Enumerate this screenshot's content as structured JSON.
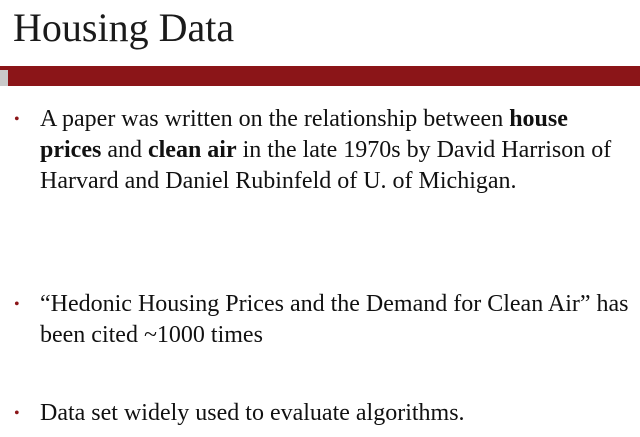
{
  "slide": {
    "title": "Housing Data",
    "colors": {
      "title_rule": "#8b1518",
      "title_rule_accent": "#c9c9c9",
      "bullet_marker": "#8b1518"
    },
    "bullet_marker": "•",
    "bullets": [
      {
        "part1": "A paper was written on the relationship between ",
        "bold1": "house prices",
        "part2": " and ",
        "bold2": "clean air",
        "part3": " in the late 1970s by David Harrison of  Harvard and Daniel Rubinfeld of U. of  Michigan."
      },
      {
        "text": "“Hedonic Housing Prices and the Demand for Clean Air” has been cited ~1000 times"
      },
      {
        "text": "Data set widely used to evaluate algorithms."
      }
    ]
  }
}
